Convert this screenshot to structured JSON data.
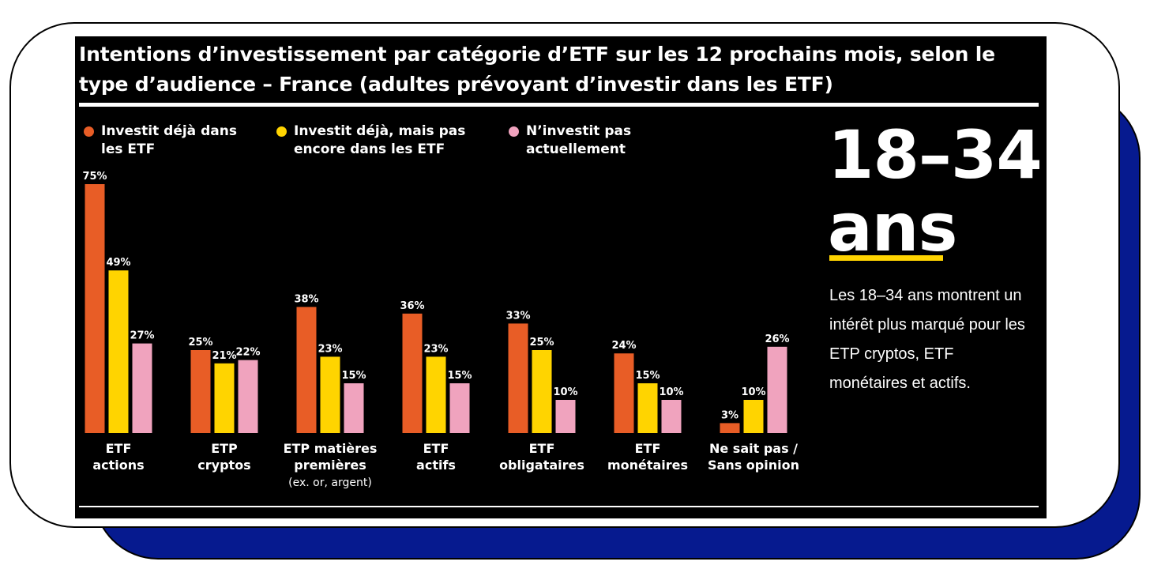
{
  "title": "Intentions d’investissement par catégorie d’ETF sur les 12 prochains mois, selon le type d’audience – France (adultes prévoyant d’investir dans les ETF)",
  "big_heading": [
    "18–34",
    "ans"
  ],
  "note": "Les 18–34 ans montrent un intérêt plus marqué pour les ETP cryptos, ETF monétaires et actifs.",
  "colors": {
    "background": "#000000",
    "card_shadow": "#061a8f",
    "accent": "#ffd400"
  },
  "chart_data": {
    "type": "bar",
    "categories": [
      {
        "lines": [
          "ETF",
          "actions"
        ],
        "sub": ""
      },
      {
        "lines": [
          "ETP",
          "cryptos"
        ],
        "sub": ""
      },
      {
        "lines": [
          "ETP matières",
          "premières"
        ],
        "sub": "(ex. or, argent)"
      },
      {
        "lines": [
          "ETF",
          "actifs"
        ],
        "sub": ""
      },
      {
        "lines": [
          "ETF",
          "obligataires"
        ],
        "sub": ""
      },
      {
        "lines": [
          "ETF",
          "monétaires"
        ],
        "sub": ""
      },
      {
        "lines": [
          "Ne sait pas /",
          "Sans opinion"
        ],
        "sub": ""
      }
    ],
    "series": [
      {
        "name": "Investit déjà dans les ETF",
        "legend_lines": [
          "Investit déjà dans",
          "les ETF"
        ],
        "color": "#e85d26",
        "values": [
          75,
          25,
          38,
          36,
          33,
          24,
          3
        ]
      },
      {
        "name": "Investit déjà, mais pas encore dans les ETF",
        "legend_lines": [
          "Investit déjà, mais pas",
          "encore dans les ETF"
        ],
        "color": "#ffd400",
        "values": [
          49,
          21,
          23,
          23,
          25,
          15,
          10
        ]
      },
      {
        "name": "N’investit pas actuellement",
        "legend_lines": [
          "N’investit pas",
          "actuellement"
        ],
        "color": "#f0a3be",
        "values": [
          27,
          22,
          15,
          15,
          10,
          10,
          26
        ]
      }
    ],
    "value_suffix": "%",
    "ylim": [
      0,
      75
    ],
    "grid": false,
    "legend_position": "top-left"
  }
}
